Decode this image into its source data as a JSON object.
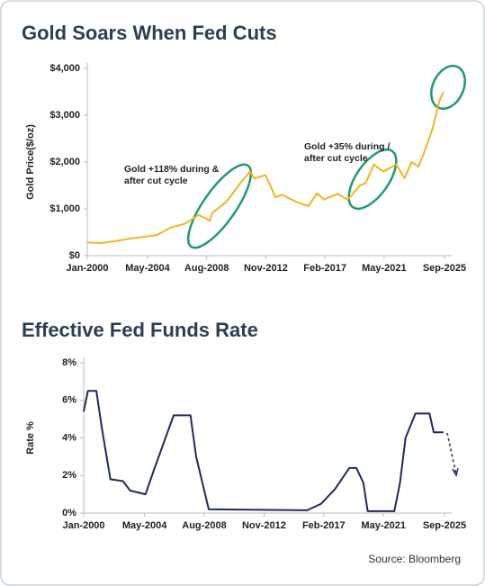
{
  "chart_data": [
    {
      "type": "line",
      "title": "Gold Soars When Fed Cuts",
      "y_label": "Gold Price($/oz)",
      "x": [
        2000,
        2001,
        2002,
        2003,
        2004,
        2005,
        2006,
        2007,
        2008,
        2008.8,
        2009,
        2010,
        2011,
        2011.7,
        2012,
        2012.8,
        2013.3,
        2013.5,
        2014,
        2015,
        2015.9,
        2016.5,
        2017,
        2018,
        2018.7,
        2019,
        2019.6,
        2020,
        2020.6,
        2021,
        2021.3,
        2022.2,
        2022.8,
        2023.3,
        2023.8,
        2024.2,
        2024.8,
        2025.3,
        2025.6
      ],
      "values": [
        280,
        270,
        310,
        360,
        400,
        440,
        600,
        680,
        870,
        750,
        920,
        1150,
        1550,
        1800,
        1650,
        1720,
        1400,
        1250,
        1300,
        1150,
        1060,
        1330,
        1200,
        1320,
        1200,
        1290,
        1500,
        1550,
        1950,
        1850,
        1800,
        1950,
        1650,
        2000,
        1900,
        2200,
        2700,
        3300,
        3500
      ],
      "color": "#f2b51c",
      "xlim": [
        2000,
        2025.67
      ],
      "xticks": [
        {
          "value": 2000,
          "label": "Jan-2000"
        },
        {
          "value": 2004.33,
          "label": "May-2004"
        },
        {
          "value": 2008.58,
          "label": "Aug-2008"
        },
        {
          "value": 2012.83,
          "label": "Nov-2012"
        },
        {
          "value": 2017.08,
          "label": "Feb-2017"
        },
        {
          "value": 2021.33,
          "label": "May-2021"
        },
        {
          "value": 2025.67,
          "label": "Sep-2025"
        }
      ],
      "ylim": [
        0,
        4000
      ],
      "yticks": [
        {
          "value": 0,
          "label": "$0"
        },
        {
          "value": 1000,
          "label": "$1,000"
        },
        {
          "value": 2000,
          "label": "$2,000"
        },
        {
          "value": 3000,
          "label": "$3,000"
        },
        {
          "value": 4000,
          "label": "$4,000"
        }
      ],
      "annotations": [
        [
          "Gold +118% during &",
          "after cut cycle"
        ],
        [
          "Gold +35% during /",
          "after cut cycle"
        ]
      ]
    },
    {
      "type": "line",
      "title": "Effective Fed Funds Rate",
      "y_label": "Rate %",
      "x": [
        2000,
        2000.3,
        2000.9,
        2001.3,
        2001.9,
        2002.8,
        2003.3,
        2004.4,
        2005,
        2006.4,
        2007.6,
        2008,
        2008.9,
        2015.9,
        2016.9,
        2017.9,
        2018.9,
        2019.4,
        2019.9,
        2020.2,
        2022.1,
        2022.5,
        2022.9,
        2023.6,
        2024.6,
        2024.9,
        2025.6
      ],
      "values": [
        5.4,
        6.5,
        6.5,
        4.5,
        1.8,
        1.7,
        1.2,
        1.0,
        2.3,
        5.2,
        5.2,
        3.0,
        0.2,
        0.15,
        0.5,
        1.3,
        2.4,
        2.4,
        1.6,
        0.1,
        0.1,
        1.6,
        4.0,
        5.3,
        5.3,
        4.3,
        4.3
      ],
      "color": "#1f2a5a",
      "xlim": [
        2000,
        2025.67
      ],
      "xticks": [
        {
          "value": 2000,
          "label": "Jan-2000"
        },
        {
          "value": 2004.33,
          "label": "May-2004"
        },
        {
          "value": 2008.58,
          "label": "Aug-2008"
        },
        {
          "value": 2012.83,
          "label": "Nov-2012"
        },
        {
          "value": 2017.08,
          "label": "Feb-2017"
        },
        {
          "value": 2021.33,
          "label": "May-2021"
        },
        {
          "value": 2025.67,
          "label": "Sep-2025"
        }
      ],
      "ylim": [
        0,
        8
      ],
      "yticks": [
        {
          "value": 0,
          "label": "0%"
        },
        {
          "value": 2,
          "label": "2%"
        },
        {
          "value": 4,
          "label": "4%"
        },
        {
          "value": 6,
          "label": "6%"
        },
        {
          "value": 8,
          "label": "8%"
        }
      ]
    }
  ],
  "source": "Source: Bloomberg"
}
